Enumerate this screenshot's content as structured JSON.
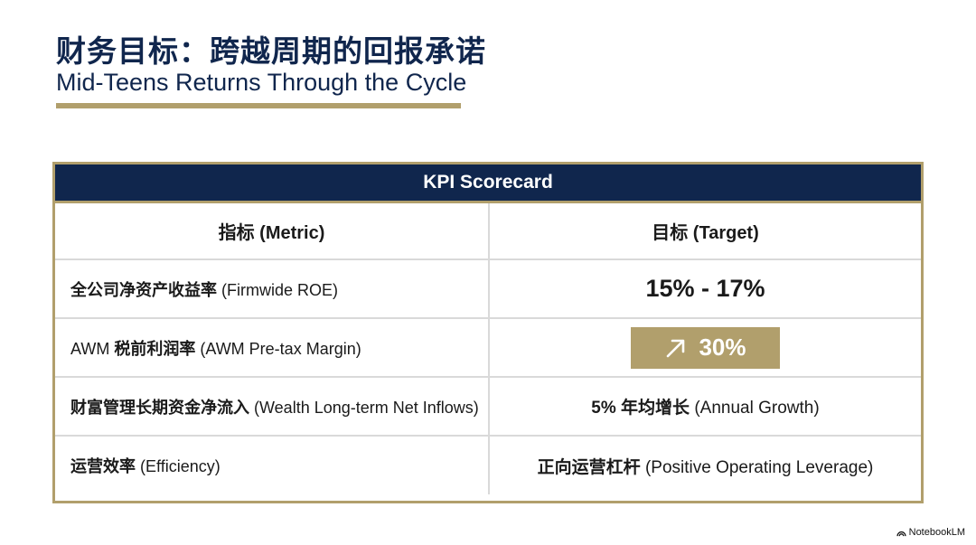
{
  "title": {
    "zh": "财务目标：跨越周期的回报承诺",
    "en": "Mid-Teens Returns Through the Cycle"
  },
  "scorecard": {
    "header": "KPI Scorecard",
    "columns": {
      "metric_zh": "指标",
      "metric_en": "(Metric)",
      "target_zh": "目标",
      "target_en": "(Target)"
    },
    "rows": [
      {
        "metric_zh": "全公司净资产收益率",
        "metric_en": "(Firmwide ROE)",
        "target": "15% - 17%"
      },
      {
        "metric_prefix": "AWM",
        "metric_zh": "税前利润率",
        "metric_en": "(AWM Pre-tax Margin)",
        "target": "30%",
        "target_icon": "arrow-up-right-icon"
      },
      {
        "metric_zh": "财富管理长期资金净流入",
        "metric_en": "(Wealth Long-term Net Inflows)",
        "target_prefix": "5%",
        "target_zh": "年均增长",
        "target_en": "(Annual Growth)"
      },
      {
        "metric_zh": "运营效率",
        "metric_en": "(Efficiency)",
        "target_zh": "正向运营杠杆",
        "target_en": "(Positive Operating Leverage)"
      }
    ]
  },
  "brand": {
    "name": "NotebookLM",
    "icon": "notebooklm-logo-icon"
  },
  "colors": {
    "navy": "#10264d",
    "gold": "#b19f6c",
    "grid": "#d9d9d9"
  }
}
